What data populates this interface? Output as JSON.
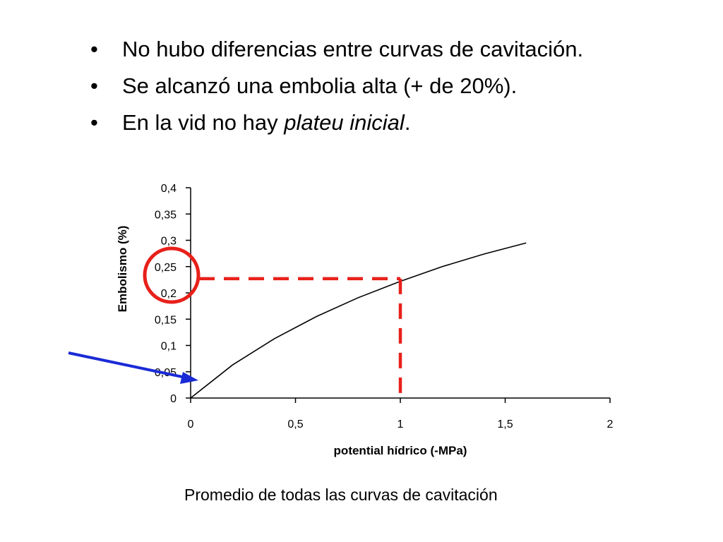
{
  "slide": {
    "bullet_marker": "•",
    "bullets": [
      {
        "text": "No hubo diferencias entre curvas de cavitación."
      },
      {
        "text": "Se alcanzó una embolia alta (+ de 20%)."
      },
      {
        "prefix": "En la vid no hay ",
        "emphasis": "plateu inicial",
        "suffix": "."
      }
    ],
    "caption": "Promedio de todas las curvas de cavitación"
  },
  "chart_data": {
    "type": "line",
    "xlabel": "potential hídrico (-MPa)",
    "ylabel": "Embolismo (%)",
    "xlim": [
      0,
      2
    ],
    "ylim": [
      0,
      0.4
    ],
    "x_ticks": [
      0,
      0.5,
      1,
      1.5,
      2
    ],
    "x_tick_labels": [
      "0",
      "0,5",
      "1",
      "1,5",
      "2"
    ],
    "y_ticks": [
      0,
      0.05,
      0.1,
      0.15,
      0.2,
      0.25,
      0.3,
      0.35,
      0.4
    ],
    "y_tick_labels": [
      "0",
      "0,05",
      "0,1",
      "0,15",
      "0,2",
      "0,25",
      "0,3",
      "0,35",
      "0,4"
    ],
    "grid": false,
    "series": [
      {
        "x": [
          0,
          0.2,
          0.4,
          0.6,
          0.8,
          1.0,
          1.2,
          1.4,
          1.6
        ],
        "y": [
          0,
          0.063,
          0.113,
          0.155,
          0.191,
          0.222,
          0.25,
          0.274,
          0.295
        ],
        "color": "#000000"
      }
    ],
    "annotations": {
      "dashed_guide": {
        "x": 1.0,
        "y": 0.227,
        "color": "#e8201a"
      },
      "circle_highlight": {
        "target": "y-axis around 0,25",
        "color": "#e8201a"
      },
      "arrow": {
        "pointing_to": "origin",
        "color": "#1a2bd6"
      }
    }
  }
}
